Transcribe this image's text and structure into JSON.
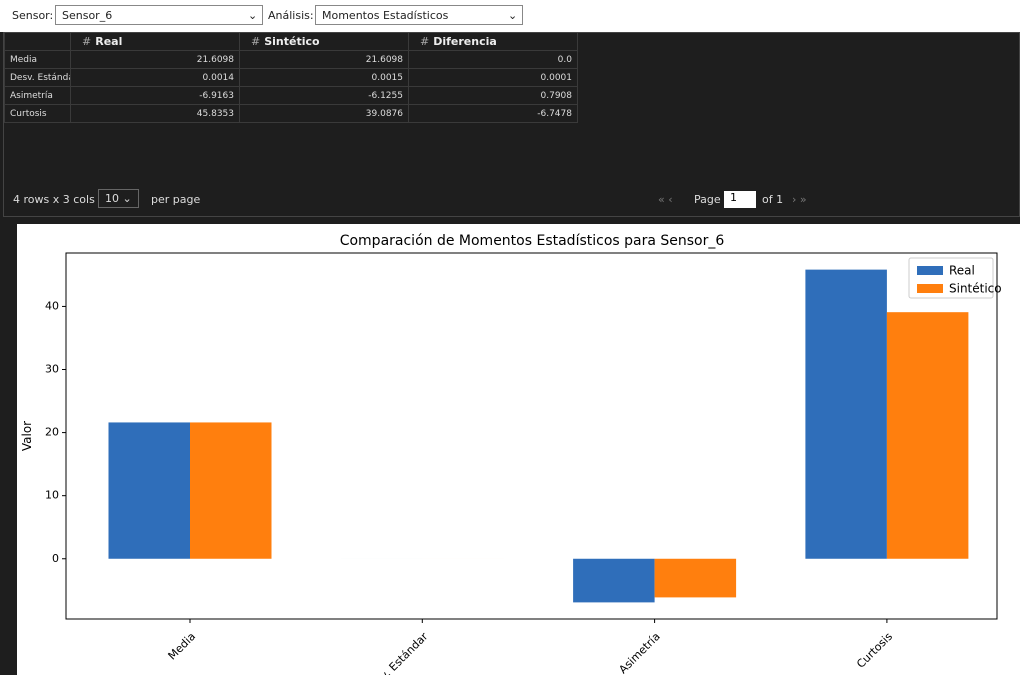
{
  "toolbar": {
    "sensor_label": "Sensor:",
    "sensor_value": "Sensor_6",
    "analysis_label": "Análisis:",
    "analysis_value": "Momentos Estadísticos"
  },
  "table": {
    "columns": [
      "Real",
      "Sintético",
      "Diferencia"
    ],
    "rows": [
      [
        "Media",
        "21.6098",
        "21.6098",
        "0.0"
      ],
      [
        "Desv. Estándar",
        "0.0014",
        "0.0015",
        "0.0001"
      ],
      [
        "Asimetría",
        "-6.9163",
        "-6.1255",
        "0.7908"
      ],
      [
        "Curtosis",
        "45.8353",
        "39.0876",
        "-6.7478"
      ]
    ],
    "summary": "4 rows x 3 cols",
    "page_size": "10",
    "per_page": "per page",
    "page_label": "Page",
    "page": "1",
    "of_pages": "of 1"
  },
  "chart_data": {
    "type": "bar",
    "title": "Comparación de Momentos Estadísticos para Sensor_6",
    "ylabel": "Valor",
    "categories": [
      "Media",
      "Desv. Estándar",
      "Asimetría",
      "Curtosis"
    ],
    "series": [
      {
        "name": "Real",
        "color": "#2f6eba",
        "values": [
          21.6098,
          0.0014,
          -6.9163,
          45.8353
        ]
      },
      {
        "name": "Sintético",
        "color": "#ff7f0e",
        "values": [
          21.6098,
          0.0015,
          -6.1255,
          39.0876
        ]
      }
    ],
    "ylim": [
      -9.55,
      48.47
    ],
    "yticks": [
      0,
      10,
      20,
      30,
      40
    ],
    "legend": "upper right"
  }
}
